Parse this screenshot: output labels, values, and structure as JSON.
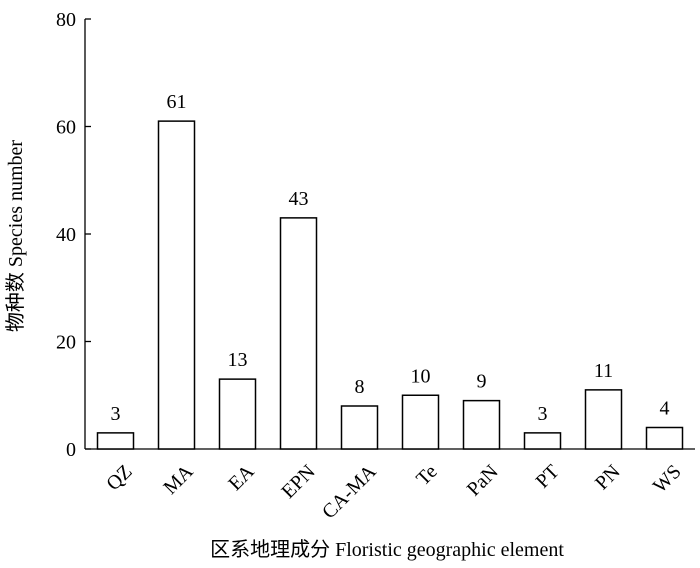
{
  "chart_data": {
    "type": "bar",
    "categories": [
      "QZ",
      "MA",
      "EA",
      "EPN",
      "CA-MA",
      "Te",
      "PaN",
      "PT",
      "PN",
      "WS"
    ],
    "values": [
      3,
      61,
      13,
      43,
      8,
      10,
      9,
      3,
      11,
      4
    ],
    "data_labels": [
      "3",
      "61",
      "13",
      "43",
      "8",
      "10",
      "9",
      "3",
      "11",
      "4"
    ],
    "ylim": [
      0,
      80
    ],
    "yticks": [
      0,
      20,
      40,
      60,
      80
    ],
    "xlabel": "区系地理成分 Floristic geographic element",
    "ylabel": "物种数 Species number",
    "grid": false,
    "legend": "none",
    "bar_fill": "#ffffff",
    "bar_stroke": "#000000"
  }
}
